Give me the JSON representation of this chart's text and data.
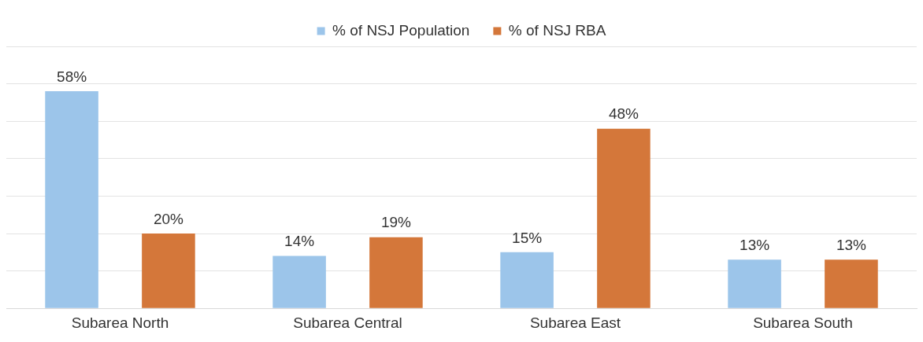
{
  "chart_data": {
    "type": "bar",
    "categories": [
      "Subarea North",
      "Subarea Central",
      "Subarea East",
      "Subarea South"
    ],
    "series": [
      {
        "name": "% of NSJ Population",
        "color": "#9cc5ea",
        "values": [
          58,
          14,
          15,
          13
        ],
        "value_labels": [
          "58%",
          "14%",
          "15%",
          "13%"
        ]
      },
      {
        "name": "% of NSJ RBA",
        "color": "#d4773a",
        "values": [
          20,
          19,
          48,
          13
        ],
        "value_labels": [
          "20%",
          "19%",
          "48%",
          "13%"
        ]
      }
    ],
    "ylim": [
      0,
      70
    ],
    "yticks": [
      {
        "value": 0,
        "label": null
      },
      {
        "value": 10,
        "label": null
      },
      {
        "value": 20,
        "label": null
      },
      {
        "value": 30,
        "label": null
      },
      {
        "value": 40,
        "label": null
      },
      {
        "value": 50,
        "label": null
      },
      {
        "value": 60,
        "label": null
      },
      {
        "value": 70,
        "label": null
      }
    ],
    "tick_labels": "x",
    "grid": "y",
    "legend": "top"
  }
}
